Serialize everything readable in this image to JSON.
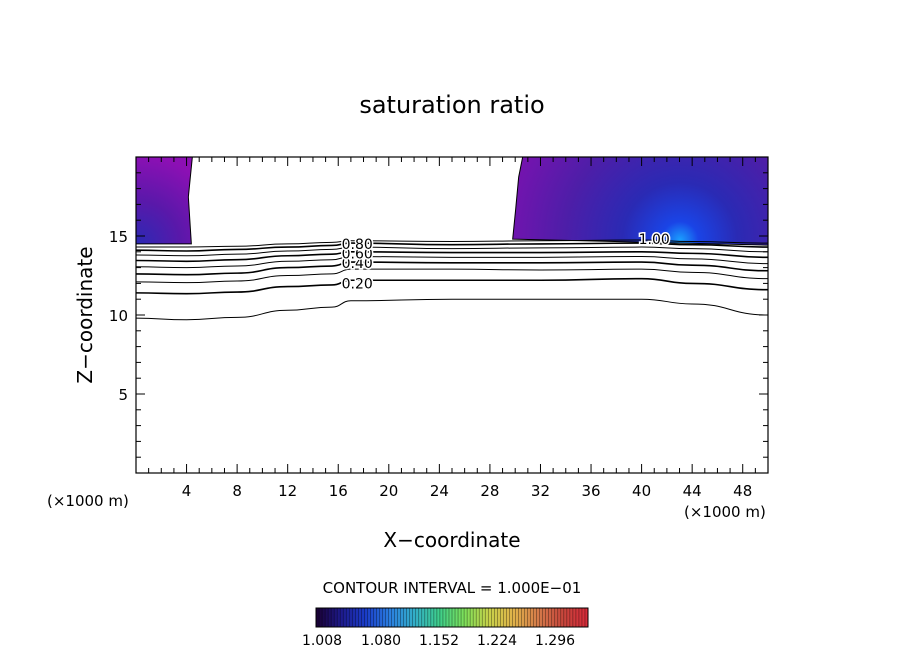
{
  "chart_data": {
    "type": "contour",
    "title": "saturation ratio",
    "xlabel": "X−coordinate",
    "ylabel": "Z−coordinate",
    "x_unit": "(×1000 m)",
    "z_unit": "(×1000 m)",
    "xlim": [
      0,
      50
    ],
    "ylim": [
      0,
      20
    ],
    "xticks": [
      "4",
      "8",
      "12",
      "16",
      "20",
      "24",
      "28",
      "32",
      "36",
      "40",
      "44",
      "48"
    ],
    "yticks": [
      "5",
      "10",
      "15"
    ],
    "contour_interval_text": "CONTOUR INTERVAL = 1.000E−01",
    "contour_labels": [
      {
        "text": "0.20",
        "x": 17.5,
        "z": 12.0
      },
      {
        "text": "0.40",
        "x": 17.5,
        "z": 13.3
      },
      {
        "text": "0.60",
        "x": 17.5,
        "z": 13.9
      },
      {
        "text": "0.80",
        "x": 17.5,
        "z": 14.5
      },
      {
        "text": "1.00",
        "x": 41.0,
        "z": 14.8
      }
    ],
    "contour_lines": [
      {
        "level": 0.1,
        "points": [
          [
            0,
            9.8
          ],
          [
            4,
            9.7
          ],
          [
            8,
            9.85
          ],
          [
            12,
            10.3
          ],
          [
            15.5,
            10.5
          ],
          [
            17,
            10.9
          ],
          [
            25,
            11.0
          ],
          [
            32,
            11.0
          ],
          [
            40,
            11.0
          ],
          [
            44,
            10.7
          ],
          [
            50,
            10.0
          ]
        ]
      },
      {
        "level": 0.2,
        "points": [
          [
            0,
            11.4
          ],
          [
            4,
            11.35
          ],
          [
            8,
            11.45
          ],
          [
            12,
            11.8
          ],
          [
            15.5,
            11.9
          ],
          [
            17,
            12.2
          ],
          [
            25,
            12.2
          ],
          [
            32,
            12.2
          ],
          [
            40,
            12.3
          ],
          [
            44,
            12.0
          ],
          [
            50,
            11.6
          ]
        ]
      },
      {
        "level": 0.3,
        "points": [
          [
            0,
            12.1
          ],
          [
            4,
            12.05
          ],
          [
            8,
            12.15
          ],
          [
            12,
            12.5
          ],
          [
            15.5,
            12.6
          ],
          [
            17,
            12.9
          ],
          [
            25,
            12.9
          ],
          [
            32,
            12.85
          ],
          [
            40,
            12.9
          ],
          [
            44,
            12.7
          ],
          [
            50,
            12.3
          ]
        ]
      },
      {
        "level": 0.4,
        "points": [
          [
            0,
            12.6
          ],
          [
            4,
            12.55
          ],
          [
            8,
            12.65
          ],
          [
            12,
            13.0
          ],
          [
            15.5,
            13.1
          ],
          [
            17,
            13.35
          ],
          [
            25,
            13.3
          ],
          [
            32,
            13.3
          ],
          [
            40,
            13.35
          ],
          [
            44,
            13.15
          ],
          [
            50,
            12.8
          ]
        ]
      },
      {
        "level": 0.5,
        "points": [
          [
            0,
            13.05
          ],
          [
            4,
            13.0
          ],
          [
            8,
            13.1
          ],
          [
            12,
            13.4
          ],
          [
            15.5,
            13.5
          ],
          [
            17,
            13.7
          ],
          [
            25,
            13.65
          ],
          [
            32,
            13.65
          ],
          [
            40,
            13.7
          ],
          [
            44,
            13.55
          ],
          [
            50,
            13.25
          ]
        ]
      },
      {
        "level": 0.6,
        "points": [
          [
            0,
            13.45
          ],
          [
            4,
            13.4
          ],
          [
            8,
            13.5
          ],
          [
            12,
            13.75
          ],
          [
            15.5,
            13.85
          ],
          [
            17,
            14.0
          ],
          [
            25,
            13.95
          ],
          [
            32,
            13.95
          ],
          [
            40,
            14.0
          ],
          [
            44,
            13.9
          ],
          [
            50,
            13.65
          ]
        ]
      },
      {
        "level": 0.7,
        "points": [
          [
            0,
            13.8
          ],
          [
            4,
            13.75
          ],
          [
            8,
            13.85
          ],
          [
            12,
            14.05
          ],
          [
            15.5,
            14.15
          ],
          [
            17,
            14.3
          ],
          [
            25,
            14.2
          ],
          [
            32,
            14.25
          ],
          [
            40,
            14.3
          ],
          [
            44,
            14.2
          ],
          [
            50,
            14.0
          ]
        ]
      },
      {
        "level": 0.8,
        "points": [
          [
            0,
            14.1
          ],
          [
            4,
            14.05
          ],
          [
            8,
            14.15
          ],
          [
            12,
            14.3
          ],
          [
            15.5,
            14.4
          ],
          [
            17,
            14.55
          ],
          [
            25,
            14.45
          ],
          [
            32,
            14.5
          ],
          [
            40,
            14.55
          ],
          [
            44,
            14.45
          ],
          [
            50,
            14.3
          ]
        ]
      },
      {
        "level": 0.9,
        "points": [
          [
            0,
            14.3
          ],
          [
            4,
            14.3
          ],
          [
            8,
            14.35
          ],
          [
            12,
            14.5
          ],
          [
            15.5,
            14.6
          ],
          [
            17,
            14.7
          ],
          [
            25,
            14.65
          ],
          [
            32,
            14.7
          ],
          [
            40,
            14.75
          ],
          [
            44,
            14.65
          ],
          [
            50,
            14.55
          ]
        ]
      }
    ],
    "shaded_regions": [
      {
        "name": "left",
        "x_range": [
          0,
          4.3
        ],
        "z_range": [
          14.5,
          20
        ]
      },
      {
        "name": "right",
        "x_range": [
          29.8,
          50
        ],
        "z_range": [
          14.8,
          20
        ]
      }
    ],
    "colorbar": {
      "ticks": [
        "1.008",
        "1.080",
        "1.152",
        "1.224",
        "1.296"
      ],
      "colors": [
        "#1a0033",
        "#1e1a8c",
        "#1a3cc8",
        "#2b7fe0",
        "#33b0c8",
        "#3fcf8a",
        "#7de05a",
        "#c8d24a",
        "#e0b24a",
        "#d47a4a",
        "#c8463c",
        "#d82a3a"
      ]
    }
  }
}
